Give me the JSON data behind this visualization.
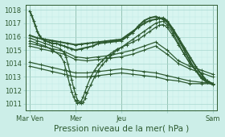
{
  "title": "",
  "xlabel": "Pression niveau de la mer( hPa )",
  "bg_color": "#cceee8",
  "plot_bg_color": "#d8f5f0",
  "grid_color_major": "#a8d8d0",
  "grid_color_minor": "#beeae4",
  "line_color": "#2d5a30",
  "ylim": [
    1010.5,
    1018.4
  ],
  "xlim": [
    -2,
    98
  ],
  "xtick_positions": [
    0,
    24,
    48,
    72,
    96
  ],
  "xtick_labels": [
    "Mar Ven",
    "Mer",
    "Jeu",
    "",
    "Sam"
  ],
  "ytick_positions": [
    1011,
    1012,
    1013,
    1014,
    1015,
    1016,
    1017,
    1018
  ],
  "ytick_labels": [
    "1011",
    "1012",
    "1013",
    "1014",
    "1015",
    "1016",
    "1017",
    "1018"
  ],
  "series": [
    {
      "x": [
        0,
        1,
        2,
        3,
        4,
        5,
        6,
        7,
        8,
        10,
        12,
        14,
        16,
        18,
        20,
        22,
        24,
        27,
        30,
        33,
        36,
        39,
        42,
        45,
        48,
        51,
        54,
        57,
        60,
        63,
        66,
        68,
        70,
        72,
        75,
        78,
        81,
        84,
        87,
        90,
        93,
        96
      ],
      "y": [
        1017.9,
        1017.6,
        1017.2,
        1016.8,
        1016.4,
        1016.1,
        1015.9,
        1015.8,
        1015.7,
        1015.6,
        1015.5,
        1015.5,
        1015.4,
        1015.3,
        1015.2,
        1015.1,
        1015.0,
        1015.1,
        1015.2,
        1015.3,
        1015.5,
        1015.55,
        1015.6,
        1015.65,
        1015.7,
        1016.0,
        1016.3,
        1016.8,
        1017.2,
        1017.4,
        1017.5,
        1017.4,
        1017.3,
        1017.1,
        1016.5,
        1015.8,
        1015.0,
        1014.2,
        1013.5,
        1012.9,
        1012.6,
        1012.5
      ],
      "thick": true
    },
    {
      "x": [
        0,
        4,
        8,
        12,
        16,
        20,
        24,
        27,
        30,
        33,
        36,
        39,
        42,
        45,
        48,
        51,
        54,
        57,
        60,
        63,
        66,
        68,
        70,
        72,
        75,
        78,
        81,
        84,
        87,
        90,
        93,
        96
      ],
      "y": [
        1016.1,
        1015.9,
        1015.8,
        1015.7,
        1015.6,
        1015.5,
        1015.4,
        1015.45,
        1015.5,
        1015.55,
        1015.6,
        1015.65,
        1015.7,
        1015.75,
        1015.8,
        1016.1,
        1016.4,
        1016.7,
        1017.0,
        1017.2,
        1017.3,
        1017.35,
        1017.4,
        1017.2,
        1016.6,
        1015.9,
        1015.2,
        1014.5,
        1013.8,
        1013.2,
        1012.7,
        1012.5
      ],
      "thick": true
    },
    {
      "x": [
        0,
        4,
        8,
        12,
        16,
        18,
        19,
        20,
        21,
        22,
        23,
        24,
        25,
        26,
        27,
        28,
        29,
        30,
        32,
        34,
        36,
        38,
        40,
        42,
        44,
        46,
        48,
        51,
        54,
        57,
        60,
        63,
        66,
        68,
        70,
        72,
        75,
        78,
        81,
        84,
        87,
        90,
        93,
        96
      ],
      "y": [
        1015.9,
        1015.7,
        1015.5,
        1015.3,
        1015.1,
        1014.8,
        1014.5,
        1014.0,
        1013.4,
        1012.8,
        1012.2,
        1011.7,
        1011.3,
        1011.1,
        1011.05,
        1011.1,
        1011.4,
        1011.8,
        1012.4,
        1013.0,
        1013.5,
        1013.9,
        1014.2,
        1014.5,
        1014.8,
        1015.0,
        1015.2,
        1015.5,
        1015.8,
        1016.1,
        1016.4,
        1016.7,
        1017.0,
        1017.1,
        1017.15,
        1016.9,
        1016.3,
        1015.5,
        1014.7,
        1014.0,
        1013.5,
        1013.0,
        1012.7,
        1012.5
      ],
      "thick": false
    },
    {
      "x": [
        0,
        4,
        8,
        12,
        16,
        18,
        19,
        20,
        21,
        22,
        23,
        24,
        25,
        26,
        27,
        28,
        29,
        30,
        32,
        34,
        36,
        38,
        40,
        42,
        44,
        46,
        48,
        51,
        54,
        57,
        60,
        63,
        66,
        68,
        70,
        72,
        75,
        78,
        81,
        84,
        87,
        90,
        93,
        96
      ],
      "y": [
        1015.7,
        1015.5,
        1015.3,
        1015.0,
        1014.6,
        1014.1,
        1013.5,
        1013.0,
        1012.4,
        1011.9,
        1011.5,
        1011.2,
        1011.05,
        1011.1,
        1011.2,
        1011.5,
        1011.9,
        1012.3,
        1013.0,
        1013.5,
        1013.9,
        1014.2,
        1014.5,
        1014.7,
        1014.9,
        1015.1,
        1015.2,
        1015.4,
        1015.6,
        1015.8,
        1016.1,
        1016.4,
        1016.7,
        1016.85,
        1016.9,
        1016.7,
        1016.1,
        1015.4,
        1014.7,
        1014.0,
        1013.5,
        1013.0,
        1012.6,
        1012.4
      ],
      "thick": false
    },
    {
      "x": [
        0,
        6,
        12,
        18,
        24,
        30,
        36,
        42,
        48,
        54,
        60,
        66,
        72,
        78,
        84,
        90,
        96
      ],
      "y": [
        1015.5,
        1015.3,
        1015.1,
        1014.9,
        1014.5,
        1014.4,
        1014.5,
        1014.6,
        1014.8,
        1015.0,
        1015.3,
        1015.6,
        1015.0,
        1014.2,
        1013.8,
        1013.5,
        1013.2
      ],
      "thick": false
    },
    {
      "x": [
        0,
        6,
        12,
        18,
        24,
        30,
        36,
        42,
        48,
        54,
        60,
        66,
        72,
        78,
        84,
        90,
        96
      ],
      "y": [
        1015.3,
        1015.1,
        1014.9,
        1014.7,
        1014.3,
        1014.2,
        1014.3,
        1014.4,
        1014.5,
        1014.7,
        1015.0,
        1015.3,
        1014.7,
        1014.0,
        1013.6,
        1013.3,
        1013.0
      ],
      "thick": false
    },
    {
      "x": [
        0,
        6,
        12,
        18,
        24,
        30,
        36,
        42,
        48,
        54,
        60,
        66,
        72,
        78,
        84,
        90,
        96
      ],
      "y": [
        1014.1,
        1013.9,
        1013.7,
        1013.5,
        1013.3,
        1013.3,
        1013.4,
        1013.5,
        1013.6,
        1013.5,
        1013.4,
        1013.3,
        1013.1,
        1012.9,
        1012.7,
        1012.6,
        1012.5
      ],
      "thick": false
    },
    {
      "x": [
        0,
        6,
        12,
        18,
        24,
        30,
        36,
        42,
        48,
        54,
        60,
        66,
        72,
        78,
        84,
        90,
        96
      ],
      "y": [
        1013.8,
        1013.6,
        1013.4,
        1013.2,
        1013.0,
        1013.0,
        1013.1,
        1013.2,
        1013.3,
        1013.2,
        1013.1,
        1013.0,
        1012.8,
        1012.7,
        1012.5,
        1012.5,
        1012.5
      ],
      "thick": false
    }
  ],
  "marker": "+",
  "marker_size": 3,
  "linewidth_thick": 1.4,
  "linewidth_thin": 0.9,
  "fontsize_ticks": 6.0,
  "fontsize_xlabel": 7.5
}
